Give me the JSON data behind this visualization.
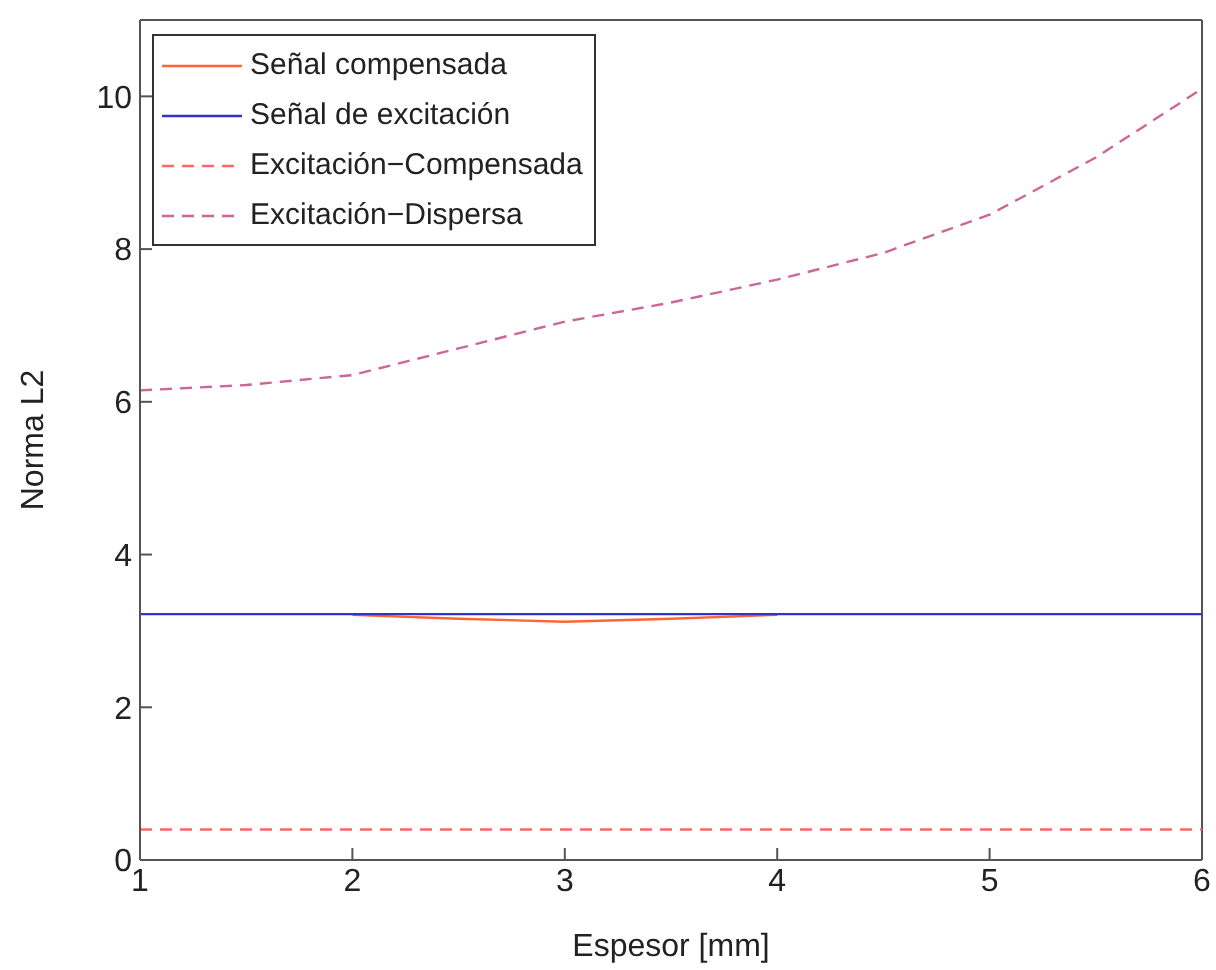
{
  "chart_data": {
    "type": "line",
    "xlabel": "Espesor [mm]",
    "ylabel": "Norma L2",
    "xlim": [
      1,
      6
    ],
    "xticks": [
      1,
      2,
      3,
      4,
      5,
      6
    ],
    "ylim": [
      0,
      11
    ],
    "yticks": [
      0,
      2,
      4,
      6,
      8,
      10
    ],
    "grid": false,
    "legend": "top left",
    "marker": "none",
    "series": [
      {
        "name": "Señal compensada",
        "color": "#ff6633",
        "line_style": "solid",
        "x": [
          2,
          2.5,
          3,
          3.5,
          4
        ],
        "values": [
          3.21,
          3.16,
          3.12,
          3.16,
          3.21
        ]
      },
      {
        "name": "Señal de excitación",
        "color": "#3333cc",
        "line_style": "solid",
        "x": [
          1,
          6
        ],
        "values": [
          3.22,
          3.22
        ]
      },
      {
        "name": "Excitación−Compensada",
        "color": "#ff6666",
        "line_style": "dashed",
        "x": [
          1,
          6
        ],
        "values": [
          0.4,
          0.4
        ]
      },
      {
        "name": "Excitación−Dispersa",
        "color": "#cc6699",
        "line_style": "dashed",
        "x": [
          1,
          1.5,
          2,
          2.5,
          3,
          3.5,
          4,
          4.5,
          5,
          5.5,
          6
        ],
        "values": [
          6.15,
          6.22,
          6.35,
          6.7,
          7.05,
          7.3,
          7.6,
          7.95,
          8.45,
          9.2,
          10.1
        ]
      }
    ]
  }
}
